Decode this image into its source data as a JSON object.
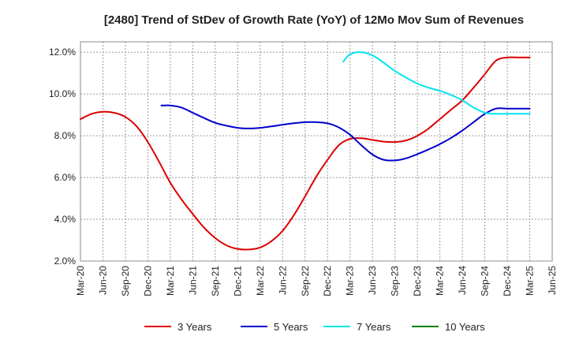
{
  "chart_data": {
    "type": "line",
    "title": "[2480]  Trend of StDev of Growth Rate (YoY) of 12Mo Mov Sum of Revenues",
    "xlabel": "",
    "ylabel": "",
    "ylim": [
      2.0,
      12.5
    ],
    "yticks": [
      2.0,
      4.0,
      6.0,
      8.0,
      10.0,
      12.0
    ],
    "ytick_labels": [
      "2.0%",
      "4.0%",
      "6.0%",
      "8.0%",
      "10.0%",
      "12.0%"
    ],
    "x_index_range": [
      0,
      21
    ],
    "xtick_labels": [
      "Mar-20",
      "Jun-20",
      "Sep-20",
      "Dec-20",
      "Mar-21",
      "Jun-21",
      "Sep-21",
      "Dec-21",
      "Mar-22",
      "Jun-22",
      "Sep-22",
      "Dec-22",
      "Mar-23",
      "Jun-23",
      "Sep-23",
      "Dec-23",
      "Mar-24",
      "Jun-24",
      "Sep-24",
      "Dec-24",
      "Mar-25",
      "Jun-25"
    ],
    "grid": true,
    "legend_position": "bottom",
    "series": [
      {
        "name": "3 Years",
        "color": "#dd0000",
        "x": [
          0,
          0.5,
          1,
          1.5,
          2,
          2.5,
          3,
          3.5,
          4,
          4.5,
          5,
          5.5,
          6,
          6.5,
          7,
          7.5,
          8,
          8.5,
          9,
          9.5,
          10,
          10.5,
          11,
          11.5,
          12,
          12.5,
          13,
          13.5,
          14,
          14.5,
          15,
          15.5,
          16,
          16.5,
          17,
          17.5,
          18,
          18.5,
          19,
          19.5,
          20
        ],
        "values": [
          8.8,
          9.05,
          9.15,
          9.1,
          8.9,
          8.45,
          7.7,
          6.75,
          5.75,
          4.95,
          4.25,
          3.6,
          3.1,
          2.75,
          2.58,
          2.55,
          2.65,
          2.95,
          3.45,
          4.2,
          5.1,
          6.05,
          6.85,
          7.55,
          7.85,
          7.88,
          7.8,
          7.72,
          7.7,
          7.78,
          8.0,
          8.35,
          8.8,
          9.25,
          9.7,
          10.3,
          10.95,
          11.6,
          11.75,
          11.75,
          11.75
        ]
      },
      {
        "name": "5 Years",
        "color": "#0000cc",
        "x": [
          3.6,
          4,
          4.5,
          5,
          5.5,
          6,
          6.5,
          7,
          7.5,
          8,
          8.5,
          9,
          9.5,
          10,
          10.5,
          11,
          11.5,
          12,
          12.5,
          13,
          13.5,
          14,
          14.5,
          15,
          15.5,
          16,
          16.5,
          17,
          17.5,
          18,
          18.5,
          19,
          19.5,
          20
        ],
        "values": [
          9.45,
          9.45,
          9.35,
          9.1,
          8.85,
          8.62,
          8.48,
          8.38,
          8.35,
          8.38,
          8.45,
          8.53,
          8.6,
          8.65,
          8.65,
          8.6,
          8.4,
          8.05,
          7.55,
          7.1,
          6.85,
          6.82,
          6.92,
          7.12,
          7.35,
          7.6,
          7.9,
          8.25,
          8.65,
          9.05,
          9.3,
          9.3,
          9.3,
          9.3
        ]
      },
      {
        "name": "7 Years",
        "color": "#00e5ee",
        "x": [
          11.7,
          12,
          12.5,
          13,
          13.5,
          14,
          14.5,
          15,
          15.5,
          16,
          16.5,
          17,
          17.5,
          18,
          18.5,
          19,
          19.5,
          20
        ],
        "values": [
          11.55,
          11.9,
          12.0,
          11.85,
          11.5,
          11.1,
          10.78,
          10.5,
          10.3,
          10.15,
          9.95,
          9.7,
          9.35,
          9.1,
          9.05,
          9.05,
          9.05,
          9.05
        ]
      },
      {
        "name": "10 Years",
        "color": "#008000",
        "x": [],
        "values": []
      }
    ]
  }
}
